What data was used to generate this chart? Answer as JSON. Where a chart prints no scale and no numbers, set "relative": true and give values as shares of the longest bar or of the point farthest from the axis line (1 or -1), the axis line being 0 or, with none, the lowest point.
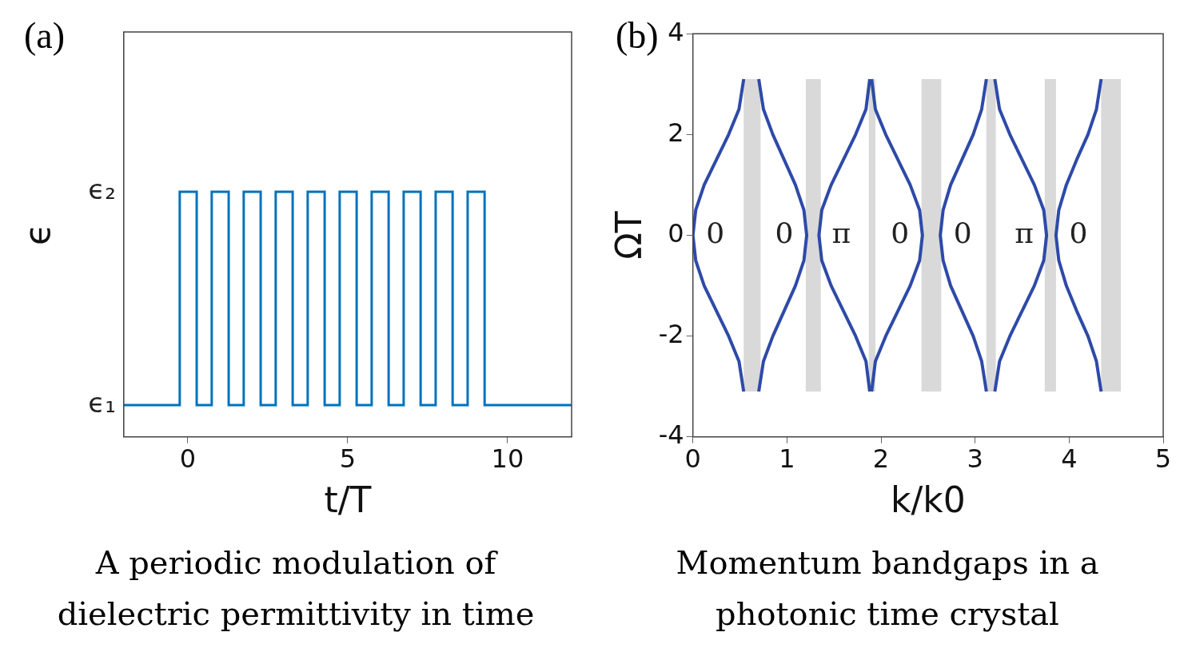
{
  "chart_data": [
    {
      "type": "step",
      "title": "A periodic modulation of dielectric permittivity in time",
      "xlabel": "t/T",
      "ylabel": "ϵ",
      "xlim": [
        -2,
        12
      ],
      "xticks": [
        0,
        5,
        10
      ],
      "relative": true,
      "grid": false,
      "legend": false,
      "color": "#0072bd",
      "x": [
        -2,
        -0.25,
        0.28,
        0.75,
        1.28,
        1.75,
        2.28,
        2.75,
        3.28,
        3.75,
        4.28,
        4.75,
        5.28,
        5.75,
        6.28,
        6.75,
        7.28,
        7.75,
        8.28,
        8.75,
        9.28,
        12
      ],
      "values": [
        0.13,
        1,
        0.13,
        1,
        0.13,
        1,
        0.13,
        1,
        0.13,
        1,
        0.13,
        1,
        0.13,
        1,
        0.13,
        1,
        0.13,
        1,
        0.13,
        1,
        0.13,
        0.13
      ],
      "annotations": [
        "(a)",
        "ϵ₁",
        "ϵ₂"
      ]
    },
    {
      "type": "line",
      "title": "Momentum bandgaps in a photonic time crystal",
      "xlabel": "k/k0",
      "ylabel": "ΩT",
      "xlim": [
        0,
        5
      ],
      "xticks": [
        0,
        1,
        2,
        3,
        4,
        5
      ],
      "ylim": [
        -4,
        4
      ],
      "yticks": [
        -4,
        -2,
        0,
        2,
        4
      ],
      "grid": false,
      "legend": false,
      "bands": [
        {
          "axis": "x",
          "from": 0.54,
          "to": 0.72,
          "color": "#d9d9d9"
        },
        {
          "axis": "x",
          "from": 1.2,
          "to": 1.36,
          "color": "#d9d9d9"
        },
        {
          "axis": "x",
          "from": 1.87,
          "to": 1.94,
          "color": "#d9d9d9"
        },
        {
          "axis": "x",
          "from": 2.43,
          "to": 2.64,
          "color": "#d9d9d9"
        },
        {
          "axis": "x",
          "from": 3.12,
          "to": 3.22,
          "color": "#d9d9d9"
        },
        {
          "axis": "x",
          "from": 3.74,
          "to": 3.86,
          "color": "#d9d9d9"
        },
        {
          "axis": "x",
          "from": 4.34,
          "to": 4.55,
          "color": "#d9d9d9"
        }
      ],
      "series": [
        {
          "color": "#2e4aa8",
          "x": [
            0.54,
            0.49,
            0.38,
            0.25,
            0.12,
            0.03,
            0,
            0.03,
            0.12,
            0.25,
            0.38,
            0.49,
            0.54
          ],
          "values": [
            -3.1,
            -2.5,
            -2,
            -1.5,
            -1,
            -0.5,
            0,
            0.5,
            1,
            1.5,
            2,
            2.5,
            3.1
          ]
        },
        {
          "color": "#2e4aa8",
          "x": [
            0.7,
            0.75,
            0.85,
            0.97,
            1.09,
            1.18,
            1.21,
            1.18,
            1.09,
            0.97,
            0.85,
            0.75,
            0.7
          ],
          "values": [
            -3.1,
            -2.5,
            -2,
            -1.5,
            -1,
            -0.5,
            0,
            0.5,
            1,
            1.5,
            2,
            2.5,
            3.1
          ]
        },
        {
          "color": "#2e4aa8",
          "x": [
            1.88,
            1.84,
            1.73,
            1.6,
            1.47,
            1.37,
            1.34,
            1.37,
            1.47,
            1.6,
            1.73,
            1.84,
            1.88
          ],
          "values": [
            -3.1,
            -2.5,
            -2,
            -1.5,
            -1,
            -0.5,
            0,
            0.5,
            1,
            1.5,
            2,
            2.5,
            3.1
          ]
        },
        {
          "color": "#2e4aa8",
          "x": [
            1.9,
            1.94,
            2.05,
            2.18,
            2.31,
            2.41,
            2.44,
            2.41,
            2.31,
            2.18,
            2.05,
            1.94,
            1.9
          ],
          "values": [
            -3.1,
            -2.5,
            -2,
            -1.5,
            -1,
            -0.5,
            0,
            0.5,
            1,
            1.5,
            2,
            2.5,
            3.1
          ]
        },
        {
          "color": "#2e4aa8",
          "x": [
            3.12,
            3.07,
            2.98,
            2.86,
            2.74,
            2.66,
            2.63,
            2.66,
            2.74,
            2.86,
            2.98,
            3.07,
            3.12
          ],
          "values": [
            -3.1,
            -2.5,
            -2,
            -1.5,
            -1,
            -0.5,
            0,
            0.5,
            1,
            1.5,
            2,
            2.5,
            3.1
          ]
        },
        {
          "color": "#2e4aa8",
          "x": [
            3.21,
            3.26,
            3.37,
            3.5,
            3.63,
            3.73,
            3.76,
            3.73,
            3.63,
            3.5,
            3.37,
            3.26,
            3.21
          ],
          "values": [
            -3.1,
            -2.5,
            -2,
            -1.5,
            -1,
            -0.5,
            0,
            0.5,
            1,
            1.5,
            2,
            2.5,
            3.1
          ]
        },
        {
          "color": "#2e4aa8",
          "x": [
            4.34,
            4.29,
            4.2,
            4.08,
            3.97,
            3.89,
            3.86,
            3.89,
            3.97,
            4.08,
            4.2,
            4.29,
            4.34
          ],
          "values": [
            -3.1,
            -2.5,
            -2,
            -1.5,
            -1,
            -0.5,
            0,
            0.5,
            1,
            1.5,
            2,
            2.5,
            3.1
          ]
        }
      ],
      "annotations": [
        "(b)",
        "0",
        "0",
        "π",
        "0",
        "0",
        "π",
        "0"
      ]
    }
  ]
}
